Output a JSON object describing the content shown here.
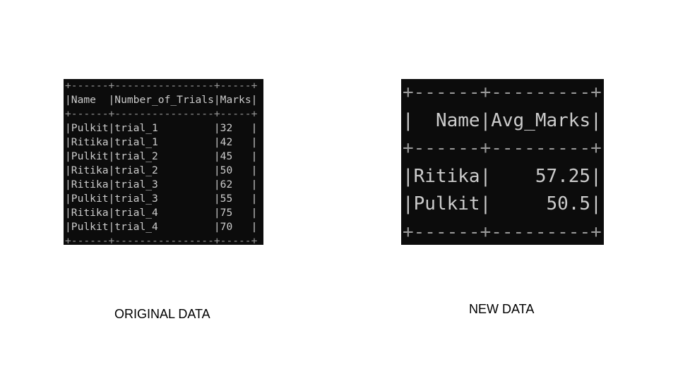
{
  "original": {
    "caption": "ORIGINAL DATA",
    "table": {
      "header": [
        "Name",
        "Number_of_Trials",
        "Marks"
      ],
      "rows": [
        [
          "Pulkit",
          "trial_1",
          32
        ],
        [
          "Ritika",
          "trial_1",
          42
        ],
        [
          "Pulkit",
          "trial_2",
          45
        ],
        [
          "Ritika",
          "trial_2",
          50
        ],
        [
          "Ritika",
          "trial_3",
          62
        ],
        [
          "Pulkit",
          "trial_3",
          55
        ],
        [
          "Ritika",
          "trial_4",
          75
        ],
        [
          "Pulkit",
          "trial_4",
          70
        ]
      ]
    }
  },
  "new": {
    "caption": "NEW DATA",
    "table": {
      "header": [
        "Name",
        "Avg_Marks"
      ],
      "rows": [
        [
          "Ritika",
          57.25
        ],
        [
          "Pulkit",
          50.5
        ]
      ]
    }
  }
}
